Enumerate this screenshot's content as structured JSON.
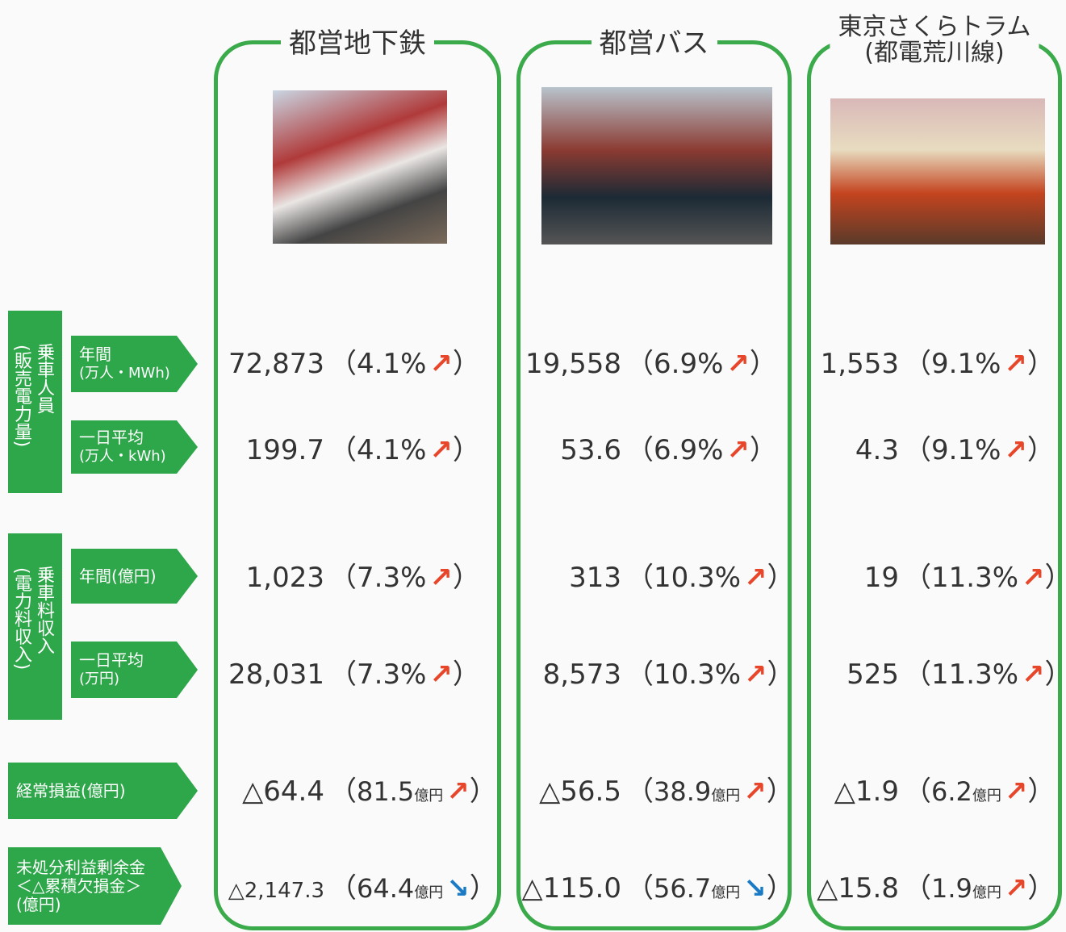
{
  "columns": [
    {
      "title": [
        "都営地下鉄"
      ],
      "cells": [
        {
          "value": "72,873",
          "change": "4.1%",
          "arrow": "↗",
          "arrow_color": "#e8462a"
        },
        {
          "value": "199.7",
          "change": "4.1%",
          "arrow": "↗",
          "arrow_color": "#e8462a"
        },
        {
          "value": "1,023",
          "change": "7.3%",
          "arrow": "↗",
          "arrow_color": "#e8462a"
        },
        {
          "value": "28,031",
          "change": "7.3%",
          "arrow": "↗",
          "arrow_color": "#e8462a"
        },
        {
          "value": "△64.4",
          "change": "81.5",
          "unit": "億円",
          "arrow": "↗",
          "arrow_color": "#e8462a"
        },
        {
          "value": "△2,147.3",
          "change": "64.4",
          "unit": "億円",
          "arrow": "↘",
          "arrow_color": "#1a7bc4"
        }
      ]
    },
    {
      "title": [
        "都営バス"
      ],
      "cells": [
        {
          "value": "19,558",
          "change": "6.9%",
          "arrow": "↗",
          "arrow_color": "#e8462a"
        },
        {
          "value": "53.6",
          "change": "6.9%",
          "arrow": "↗",
          "arrow_color": "#e8462a"
        },
        {
          "value": "313",
          "change": "10.3%",
          "arrow": "↗",
          "arrow_color": "#e8462a"
        },
        {
          "value": "8,573",
          "change": "10.3%",
          "arrow": "↗",
          "arrow_color": "#e8462a"
        },
        {
          "value": "△56.5",
          "change": "38.9",
          "unit": "億円",
          "arrow": "↗",
          "arrow_color": "#e8462a"
        },
        {
          "value": "△115.0",
          "change": "56.7",
          "unit": "億円",
          "arrow": "↘",
          "arrow_color": "#1a7bc4"
        }
      ]
    },
    {
      "title": [
        "東京さくらトラム",
        "(都電荒川線)"
      ],
      "cells": [
        {
          "value": "1,553",
          "change": "9.1%",
          "arrow": "↗",
          "arrow_color": "#e8462a"
        },
        {
          "value": "4.3",
          "change": "9.1%",
          "arrow": "↗",
          "arrow_color": "#e8462a"
        },
        {
          "value": "19",
          "change": "11.3%",
          "arrow": "↗",
          "arrow_color": "#e8462a"
        },
        {
          "value": "525",
          "change": "11.3%",
          "arrow": "↗",
          "arrow_color": "#e8462a"
        },
        {
          "value": "△1.9",
          "change": "6.2",
          "unit": "億円",
          "arrow": "↗",
          "arrow_color": "#e8462a"
        },
        {
          "value": "△15.8",
          "change": "1.9",
          "unit": "億円",
          "arrow": "↗",
          "arrow_color": "#e8462a"
        }
      ]
    }
  ],
  "paren_open": "（",
  "paren_close": "）",
  "row_groups": [
    [
      "乗車人員",
      "(販売電力量)"
    ],
    [
      "乗車料収入",
      "(電力料収入)"
    ]
  ],
  "row_labels": [
    [
      "年間",
      "(万人・MWh)"
    ],
    [
      "一日平均",
      "(万人・kWh)"
    ],
    [
      "年間(億円)"
    ],
    [
      "一日平均",
      "(万円)"
    ],
    [
      "経常損益(億円)"
    ],
    [
      "未処分利益剰余金",
      "＜△累積欠損金＞",
      "(億円)"
    ]
  ]
}
